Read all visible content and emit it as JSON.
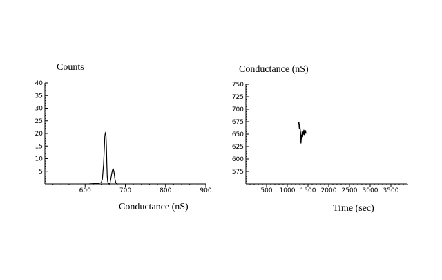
{
  "chart_data": [
    {
      "type": "line",
      "ylabel": "Counts",
      "xlabel": "Conductance (nS)",
      "xlim": [
        500,
        900
      ],
      "ylim": [
        0,
        40
      ],
      "xticks": [
        600,
        700,
        800,
        900
      ],
      "yticks": [
        5,
        10,
        15,
        20,
        25,
        30,
        35,
        40
      ],
      "series": [
        {
          "x": [
            610,
            630,
            640,
            643,
            646,
            648,
            649,
            650,
            651,
            652,
            653,
            654,
            655,
            656,
            658,
            660,
            662,
            664,
            666,
            668,
            670,
            672,
            674,
            676,
            678,
            680
          ],
          "y": [
            0,
            0.2,
            0.5,
            2,
            8,
            15,
            19,
            20,
            20.5,
            19,
            15,
            8,
            3,
            1,
            0.3,
            0,
            0.5,
            2,
            4,
            5.5,
            6,
            4.5,
            2,
            0.6,
            0.1,
            0
          ]
        }
      ]
    },
    {
      "type": "line",
      "ylabel": "Conductance (nS)",
      "xlabel": "Time (sec)",
      "xlim": [
        0,
        3900
      ],
      "ylim": [
        550,
        750
      ],
      "xticks": [
        500,
        1000,
        1500,
        2000,
        2500,
        3000,
        3500
      ],
      "yticks": [
        575,
        600,
        625,
        650,
        675,
        700,
        725,
        750
      ],
      "series": [
        {
          "x": [
            1260,
            1270,
            1280,
            1290,
            1300,
            1310,
            1320,
            1330,
            1340,
            1350,
            1360,
            1370,
            1380,
            1390,
            1400,
            1410,
            1420,
            1430,
            1440,
            1450
          ],
          "y": [
            672,
            670,
            674,
            662,
            668,
            660,
            652,
            632,
            648,
            641,
            656,
            645,
            654,
            650,
            658,
            649,
            655,
            652,
            657,
            651
          ]
        }
      ]
    }
  ]
}
